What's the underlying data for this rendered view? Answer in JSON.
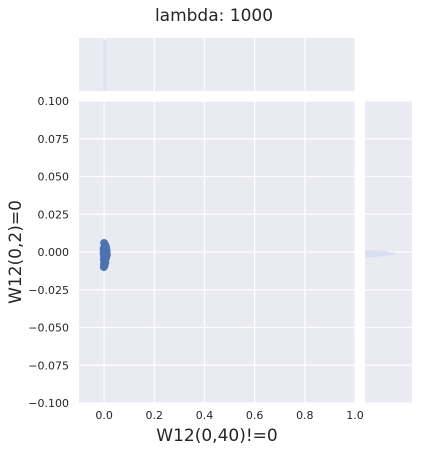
{
  "chart_data": {
    "type": "scatter",
    "title": "lambda: 1000",
    "xlabel": "W12(0,40)!=0",
    "ylabel": "W12(0,2)=0",
    "xlim": [
      -0.1,
      1.0
    ],
    "ylim": [
      -0.1,
      0.1
    ],
    "xticks": [
      "0.0",
      "0.2",
      "0.4",
      "0.6",
      "0.8",
      "1.0"
    ],
    "xtick_values": [
      0.0,
      0.2,
      0.4,
      0.6,
      0.8,
      1.0
    ],
    "yticks": [
      "0.100",
      "0.075",
      "0.050",
      "0.025",
      "0.000",
      "−0.025",
      "−0.050",
      "−0.075",
      "−0.100"
    ],
    "ytick_values": [
      0.1,
      0.075,
      0.05,
      0.025,
      0.0,
      -0.025,
      -0.05,
      -0.075,
      -0.1
    ],
    "grid": true,
    "marginals": true,
    "points": [
      {
        "x": 0.0,
        "y": 0.006
      },
      {
        "x": 0.003,
        "y": 0.005
      },
      {
        "x": 0.006,
        "y": 0.004
      },
      {
        "x": 0.001,
        "y": 0.003
      },
      {
        "x": 0.008,
        "y": 0.003
      },
      {
        "x": 0.004,
        "y": 0.002
      },
      {
        "x": -0.001,
        "y": 0.001
      },
      {
        "x": 0.002,
        "y": 0.001
      },
      {
        "x": 0.007,
        "y": 0.0
      },
      {
        "x": 0.01,
        "y": 0.001
      },
      {
        "x": 0.0,
        "y": 0.0
      },
      {
        "x": 0.004,
        "y": -0.001
      },
      {
        "x": -0.002,
        "y": -0.001
      },
      {
        "x": 0.009,
        "y": -0.002
      },
      {
        "x": 0.002,
        "y": -0.002
      },
      {
        "x": 0.006,
        "y": -0.003
      },
      {
        "x": 0.0,
        "y": -0.003
      },
      {
        "x": 0.003,
        "y": -0.004
      },
      {
        "x": 0.008,
        "y": -0.004
      },
      {
        "x": -0.001,
        "y": -0.005
      },
      {
        "x": 0.004,
        "y": -0.005
      },
      {
        "x": 0.001,
        "y": -0.006
      },
      {
        "x": 0.005,
        "y": -0.007
      },
      {
        "x": 0.0,
        "y": -0.008
      },
      {
        "x": 0.002,
        "y": -0.009
      },
      {
        "x": -0.001,
        "y": -0.01
      },
      {
        "x": 0.01,
        "y": -0.001
      },
      {
        "x": 0.011,
        "y": -0.002
      },
      {
        "x": 0.005,
        "y": 0.004
      },
      {
        "x": -0.002,
        "y": 0.002
      }
    ],
    "colors": {
      "points": "#4c72b0",
      "panel_bg": "#eaeaf2",
      "grid": "#ffffff",
      "marginal_fill": "#d6def0",
      "text": "#262626"
    }
  }
}
